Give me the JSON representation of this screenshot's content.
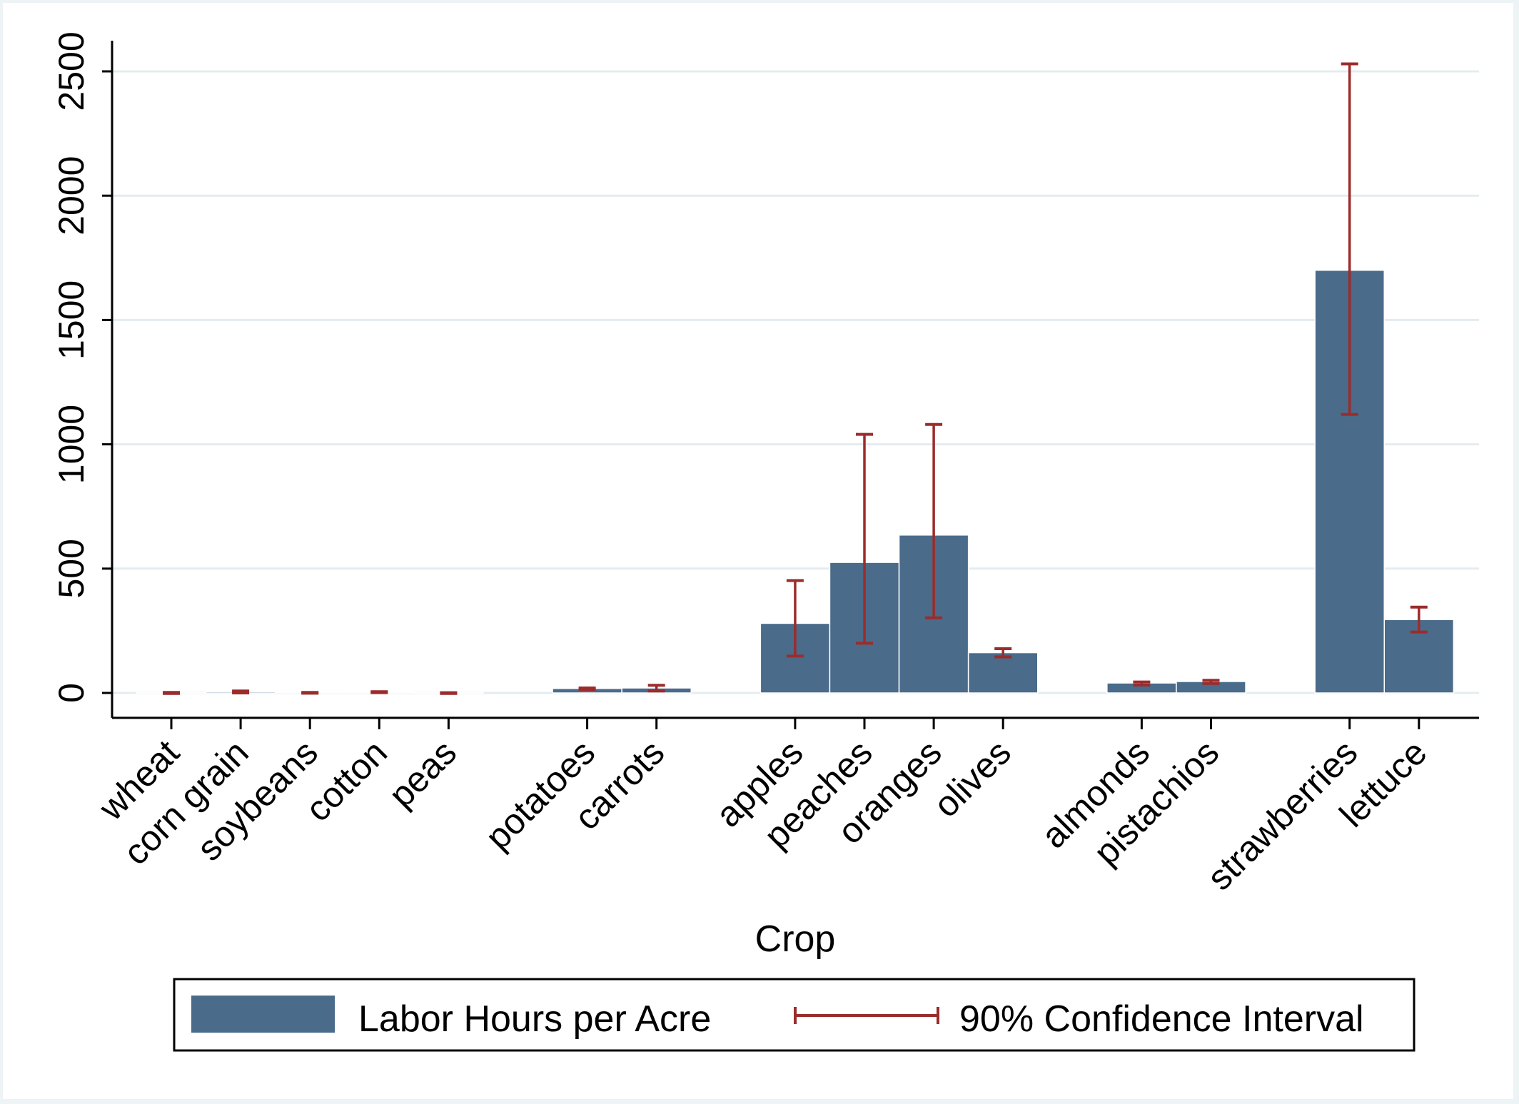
{
  "chart_data": {
    "type": "bar",
    "xlabel": "Crop",
    "ylabel": "",
    "ylim": [
      -100,
      2620
    ],
    "yticks": [
      0,
      500,
      1000,
      1500,
      2000,
      2500
    ],
    "grid": true,
    "legend_position": "bottom",
    "categories": [
      "wheat",
      "corn grain",
      "soybeans",
      "cotton",
      "peas",
      "potatoes",
      "carrots",
      "apples",
      "peaches",
      "oranges",
      "olives",
      "almonds",
      "pistachios",
      "strawberries",
      "lettuce"
    ],
    "groups": [
      [
        0,
        1,
        2,
        3,
        4
      ],
      [
        5,
        6
      ],
      [
        7,
        8,
        9,
        10
      ],
      [
        11,
        12
      ],
      [
        13,
        14
      ]
    ],
    "series": [
      {
        "name": "Labor Hours per Acre",
        "color": "#4a6b8a",
        "values": [
          1,
          5,
          2,
          3,
          1,
          18,
          20,
          280,
          525,
          635,
          162,
          40,
          46,
          1700,
          295
        ]
      },
      {
        "name": "90% Confidence Interval",
        "color": "#9b2c2c",
        "lower": [
          -2,
          0,
          -1,
          1,
          -2,
          14,
          8,
          148,
          200,
          302,
          145,
          32,
          38,
          1120,
          245
        ],
        "upper": [
          2,
          8,
          2,
          5,
          1,
          20,
          31,
          452,
          1040,
          1080,
          178,
          44,
          51,
          2530,
          345
        ]
      }
    ]
  }
}
